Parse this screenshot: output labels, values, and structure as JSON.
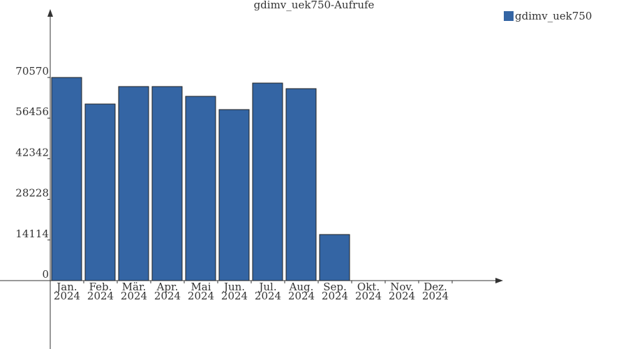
{
  "chart_data": {
    "type": "bar",
    "title": "gdimv_uek750-Aufrufe",
    "categories": [
      [
        "Jan.",
        "2024"
      ],
      [
        "Feb.",
        "2024"
      ],
      [
        "Mär.",
        "2024"
      ],
      [
        "Apr.",
        "2024"
      ],
      [
        "Mai",
        "2024"
      ],
      [
        "Jun.",
        "2024"
      ],
      [
        "Jul.",
        "2024"
      ],
      [
        "Aug.",
        "2024"
      ],
      [
        "Sep.",
        "2024"
      ],
      [
        "Okt.",
        "2024"
      ],
      [
        "Nov.",
        "2024"
      ],
      [
        "Dez.",
        "2024"
      ]
    ],
    "series": [
      {
        "name": "gdimv_uek750",
        "color": "#3465a4",
        "values": [
          70570,
          61355,
          67418,
          67418,
          64022,
          59415,
          68630,
          66690,
          16006,
          0,
          0,
          0
        ]
      }
    ],
    "ylim": [
      0,
      93124
    ],
    "yticks": [
      0,
      14114,
      28228,
      42342,
      56456,
      70570
    ],
    "legend": "top-right"
  }
}
